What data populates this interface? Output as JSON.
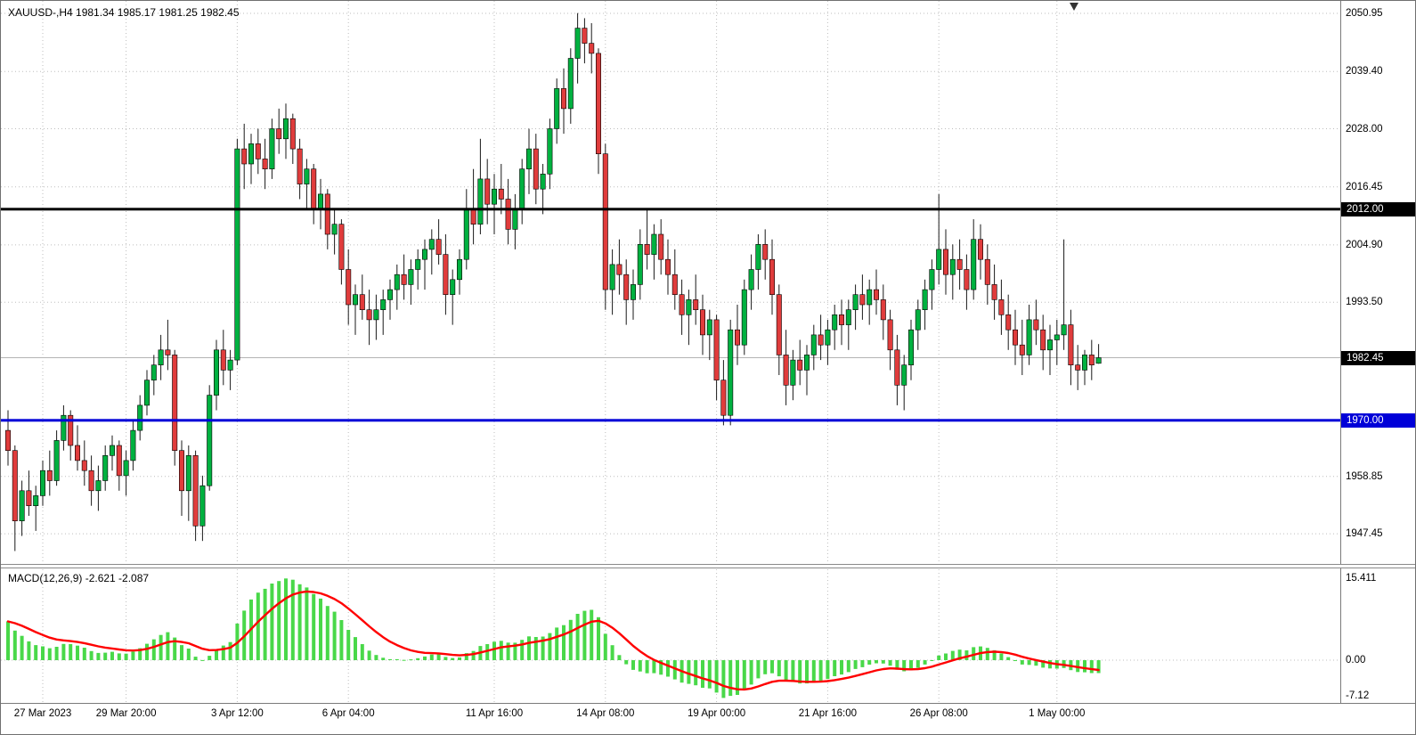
{
  "header": {
    "title": "XAUUSD-,H4  1981.34 1985.17 1981.25 1982.45"
  },
  "colors": {
    "bull": "#00b140",
    "bear": "#e03c3c",
    "wick": "#1a1a1a",
    "candle_border": "#000000",
    "grid": "#bdbdbd",
    "bid_line": "#b4b4b4",
    "hline_black": "#000000",
    "hline_blue": "#0000d8",
    "macd_hist": "#49d849",
    "macd_signal": "#ff0000",
    "flag_black_bg": "#000000",
    "flag_blue_bg": "#0000d8"
  },
  "chart_data": {
    "type": "candlestick",
    "symbol": "XAUUSD",
    "timeframe": "H4",
    "current_bar": {
      "open": 1981.34,
      "high": 1985.17,
      "low": 1981.25,
      "close": 1982.45
    },
    "price_labels": [
      2050.95,
      2039.4,
      2028.0,
      2016.45,
      2004.9,
      1993.5,
      1958.85,
      1947.45
    ],
    "price_flags": [
      {
        "text": "2012.00",
        "price": 2012.0,
        "bg": "flag_black_bg"
      },
      {
        "text": "1982.45",
        "price": 1982.45,
        "bg": "flag_black_bg"
      },
      {
        "text": "1970.00",
        "price": 1970.0,
        "bg": "flag_blue_bg"
      }
    ],
    "hlines": [
      {
        "price": 2012.0,
        "color": "hline_black",
        "thickness": 3
      },
      {
        "price": 1970.0,
        "color": "hline_blue",
        "thickness": 3
      }
    ],
    "bid": {
      "price": 1982.45
    },
    "time_ticks": [
      {
        "label": "27 Mar 2023",
        "index": 5
      },
      {
        "label": "29 Mar 20:00",
        "index": 17
      },
      {
        "label": "3 Apr 12:00",
        "index": 33
      },
      {
        "label": "6 Apr 04:00",
        "index": 49
      },
      {
        "label": "11 Apr 16:00",
        "index": 70
      },
      {
        "label": "14 Apr 08:00",
        "index": 86
      },
      {
        "label": "19 Apr 00:00",
        "index": 102
      },
      {
        "label": "21 Apr 16:00",
        "index": 118
      },
      {
        "label": "26 Apr 08:00",
        "index": 134
      },
      {
        "label": "1 May 00:00",
        "index": 151
      }
    ],
    "macd": {
      "title": "MACD(12,26,9) -2.621 -2.087",
      "params": [
        12,
        26,
        9
      ],
      "macd_value": -2.621,
      "signal_value": -2.087,
      "axis": [
        {
          "text": "15.411",
          "value": 15.411
        },
        {
          "text": "0.00",
          "value": 0
        },
        {
          "text": "-7.12",
          "value": -7.12
        }
      ]
    },
    "candles": [
      [
        1968,
        1972,
        1961,
        1964
      ],
      [
        1964,
        1965,
        1944,
        1950
      ],
      [
        1950,
        1958,
        1947,
        1956
      ],
      [
        1956,
        1960,
        1951,
        1953
      ],
      [
        1953,
        1957,
        1948,
        1955
      ],
      [
        1955,
        1962,
        1953,
        1960
      ],
      [
        1960,
        1964,
        1955,
        1958
      ],
      [
        1958,
        1968,
        1957,
        1966
      ],
      [
        1966,
        1973,
        1964,
        1971
      ],
      [
        1971,
        1972,
        1962,
        1965
      ],
      [
        1965,
        1969,
        1960,
        1962
      ],
      [
        1962,
        1966,
        1957,
        1960
      ],
      [
        1960,
        1963,
        1953,
        1956
      ],
      [
        1956,
        1961,
        1952,
        1958
      ],
      [
        1958,
        1965,
        1956,
        1963
      ],
      [
        1963,
        1967,
        1960,
        1965
      ],
      [
        1965,
        1966,
        1956,
        1959
      ],
      [
        1959,
        1964,
        1955,
        1962
      ],
      [
        1962,
        1970,
        1960,
        1968
      ],
      [
        1968,
        1975,
        1966,
        1973
      ],
      [
        1973,
        1980,
        1971,
        1978
      ],
      [
        1978,
        1983,
        1975,
        1981
      ],
      [
        1981,
        1987,
        1978,
        1984
      ],
      [
        1984,
        1990,
        1980,
        1983
      ],
      [
        1983,
        1984,
        1961,
        1964
      ],
      [
        1964,
        1966,
        1951,
        1956
      ],
      [
        1956,
        1965,
        1950,
        1963
      ],
      [
        1963,
        1964,
        1946,
        1949
      ],
      [
        1949,
        1959,
        1946,
        1957
      ],
      [
        1957,
        1977,
        1956,
        1975
      ],
      [
        1975,
        1986,
        1972,
        1984
      ],
      [
        1984,
        1988,
        1977,
        1980
      ],
      [
        1980,
        1984,
        1976,
        1982
      ],
      [
        1982,
        2026,
        1981,
        2024
      ],
      [
        2024,
        2029,
        2016,
        2021
      ],
      [
        2021,
        2027,
        2017,
        2025
      ],
      [
        2025,
        2028,
        2019,
        2022
      ],
      [
        2022,
        2026,
        2016,
        2020
      ],
      [
        2020,
        2030,
        2018,
        2028
      ],
      [
        2028,
        2032,
        2023,
        2026
      ],
      [
        2026,
        2033,
        2022,
        2030
      ],
      [
        2030,
        2031,
        2021,
        2024
      ],
      [
        2024,
        2026,
        2014,
        2017
      ],
      [
        2017,
        2022,
        2012,
        2020
      ],
      [
        2020,
        2021,
        2009,
        2012
      ],
      [
        2012,
        2018,
        2008,
        2015
      ],
      [
        2015,
        2016,
        2004,
        2007
      ],
      [
        2007,
        2012,
        2003,
        2009
      ],
      [
        2009,
        2010,
        1997,
        2000
      ],
      [
        2000,
        2004,
        1989,
        1993
      ],
      [
        1993,
        1997,
        1987,
        1995
      ],
      [
        1995,
        1999,
        1990,
        1992
      ],
      [
        1992,
        1996,
        1985,
        1990
      ],
      [
        1990,
        1995,
        1986,
        1992
      ],
      [
        1992,
        1996,
        1987,
        1994
      ],
      [
        1994,
        1998,
        1990,
        1996
      ],
      [
        1996,
        2001,
        1992,
        1999
      ],
      [
        1999,
        2003,
        1994,
        1997
      ],
      [
        1997,
        2002,
        1993,
        2000
      ],
      [
        2000,
        2004,
        1996,
        2002
      ],
      [
        2002,
        2006,
        1996,
        2004
      ],
      [
        2004,
        2008,
        1999,
        2006
      ],
      [
        2006,
        2010,
        2001,
        2003
      ],
      [
        2003,
        2007,
        1991,
        1995
      ],
      [
        1995,
        2000,
        1989,
        1998
      ],
      [
        1998,
        2004,
        1995,
        2002
      ],
      [
        2002,
        2016,
        2000,
        2012
      ],
      [
        2012,
        2020,
        2005,
        2009
      ],
      [
        2009,
        2026,
        2007,
        2018
      ],
      [
        2018,
        2022,
        2009,
        2013
      ],
      [
        2013,
        2019,
        2007,
        2016
      ],
      [
        2016,
        2021,
        2011,
        2014
      ],
      [
        2014,
        2018,
        2005,
        2008
      ],
      [
        2008,
        2015,
        2004,
        2012
      ],
      [
        2012,
        2022,
        2009,
        2020
      ],
      [
        2020,
        2028,
        2015,
        2024
      ],
      [
        2024,
        2027,
        2013,
        2016
      ],
      [
        2016,
        2021,
        2011,
        2019
      ],
      [
        2019,
        2030,
        2016,
        2028
      ],
      [
        2028,
        2038,
        2025,
        2036
      ],
      [
        2036,
        2040,
        2027,
        2032
      ],
      [
        2032,
        2044,
        2029,
        2042
      ],
      [
        2042,
        2051,
        2037,
        2048
      ],
      [
        2048,
        2050,
        2041,
        2045
      ],
      [
        2045,
        2049,
        2039,
        2043
      ],
      [
        2043,
        2044,
        2019,
        2023
      ],
      [
        2023,
        2025,
        1992,
        1996
      ],
      [
        1996,
        2004,
        1991,
        2001
      ],
      [
        2001,
        2006,
        1995,
        1999
      ],
      [
        1999,
        2002,
        1989,
        1994
      ],
      [
        1994,
        2000,
        1990,
        1997
      ],
      [
        1997,
        2008,
        1994,
        2005
      ],
      [
        2005,
        2012,
        2000,
        2003
      ],
      [
        2003,
        2009,
        1998,
        2007
      ],
      [
        2007,
        2010,
        1999,
        2002
      ],
      [
        2002,
        2006,
        1995,
        1999
      ],
      [
        1999,
        2004,
        1992,
        1995
      ],
      [
        1995,
        1998,
        1987,
        1991
      ],
      [
        1991,
        1996,
        1985,
        1994
      ],
      [
        1994,
        1999,
        1989,
        1992
      ],
      [
        1992,
        1995,
        1983,
        1987
      ],
      [
        1987,
        1992,
        1982,
        1990
      ],
      [
        1990,
        1991,
        1974,
        1978
      ],
      [
        1978,
        1982,
        1969,
        1971
      ],
      [
        1971,
        1990,
        1969,
        1988
      ],
      [
        1988,
        1993,
        1981,
        1985
      ],
      [
        1985,
        1998,
        1983,
        1996
      ],
      [
        1996,
        2003,
        1992,
        2000
      ],
      [
        2000,
        2007,
        1996,
        2005
      ],
      [
        2005,
        2008,
        1998,
        2002
      ],
      [
        2002,
        2006,
        1991,
        1995
      ],
      [
        1995,
        1997,
        1979,
        1983
      ],
      [
        1983,
        1988,
        1973,
        1977
      ],
      [
        1977,
        1984,
        1974,
        1982
      ],
      [
        1982,
        1986,
        1977,
        1980
      ],
      [
        1980,
        1985,
        1975,
        1983
      ],
      [
        1983,
        1989,
        1980,
        1987
      ],
      [
        1987,
        1991,
        1982,
        1985
      ],
      [
        1985,
        1990,
        1981,
        1988
      ],
      [
        1988,
        1993,
        1984,
        1991
      ],
      [
        1991,
        1994,
        1985,
        1989
      ],
      [
        1989,
        1994,
        1984,
        1992
      ],
      [
        1992,
        1997,
        1988,
        1995
      ],
      [
        1995,
        1999,
        1990,
        1993
      ],
      [
        1993,
        1998,
        1989,
        1996
      ],
      [
        1996,
        2000,
        1991,
        1994
      ],
      [
        1994,
        1997,
        1986,
        1990
      ],
      [
        1990,
        1992,
        1980,
        1984
      ],
      [
        1984,
        1987,
        1973,
        1977
      ],
      [
        1977,
        1983,
        1972,
        1981
      ],
      [
        1981,
        1990,
        1978,
        1988
      ],
      [
        1988,
        1994,
        1984,
        1992
      ],
      [
        1992,
        1998,
        1988,
        1996
      ],
      [
        1996,
        2002,
        1992,
        2000
      ],
      [
        2000,
        2015,
        1997,
        2004
      ],
      [
        2004,
        2008,
        1995,
        1999
      ],
      [
        1999,
        2005,
        1994,
        2002
      ],
      [
        2002,
        2006,
        1996,
        2000
      ],
      [
        2000,
        2003,
        1992,
        1996
      ],
      [
        1996,
        2010,
        1994,
        2006
      ],
      [
        2006,
        2009,
        1998,
        2002
      ],
      [
        2002,
        2005,
        1993,
        1997
      ],
      [
        1997,
        2001,
        1990,
        1994
      ],
      [
        1994,
        1998,
        1987,
        1991
      ],
      [
        1991,
        1995,
        1984,
        1988
      ],
      [
        1988,
        1992,
        1981,
        1985
      ],
      [
        1985,
        1990,
        1979,
        1983
      ],
      [
        1983,
        1993,
        1981,
        1990
      ],
      [
        1990,
        1994,
        1985,
        1988
      ],
      [
        1988,
        1991,
        1980,
        1984
      ],
      [
        1984,
        1989,
        1979,
        1986
      ],
      [
        1986,
        1990,
        1981,
        1987
      ],
      [
        1987,
        2006,
        1984,
        1989
      ],
      [
        1989,
        1992,
        1977,
        1981
      ],
      [
        1981,
        1985,
        1976,
        1980
      ],
      [
        1980,
        1984,
        1977,
        1983
      ],
      [
        1983,
        1986,
        1978,
        1981
      ],
      [
        1981.34,
        1985.17,
        1981.25,
        1982.45
      ]
    ]
  }
}
